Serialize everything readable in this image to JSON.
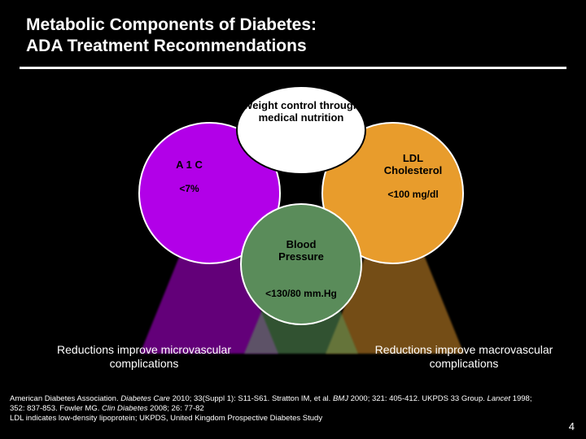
{
  "title_line1": "Metabolic Components of Diabetes:",
  "title_line2": "ADA Treatment Recommendations",
  "top_circle": "Weight control through medical nutrition",
  "left": {
    "label": "A 1 C",
    "value": "<7%"
  },
  "right": {
    "label": "LDL Cholesterol",
    "value": "<100 mg/dl"
  },
  "mid": {
    "label": "Blood Pressure",
    "value": "<130/80 mm.Hg"
  },
  "bottom_left": "Reductions improve microvascular complications",
  "bottom_right": "Reductions improve macrovascular complications",
  "cite1a": "American Diabetes Association. ",
  "cite1b": "Diabetes Care",
  "cite1c": " 2010; 33(Suppl 1): S11-S61. Stratton IM, et al. ",
  "cite1d": "BMJ",
  "cite1e": " 2000; 321: 405-412. UKPDS 33 Group. ",
  "cite1f": "Lancet",
  "cite1g": " 1998; 352: 837-853. Fowler MG. ",
  "cite1h": "Clin Diabetes",
  "cite1i": " 2008; 26: 77-82",
  "cite2": "LDL indicates low-density lipoprotein; UKPDS, United Kingdom Prospective Diabetes Study",
  "page": "4",
  "colors": {
    "bg": "#000000",
    "purple": "#b200e8",
    "orange": "#e89c2c",
    "green": "#5a8c5a",
    "white": "#ffffff"
  }
}
